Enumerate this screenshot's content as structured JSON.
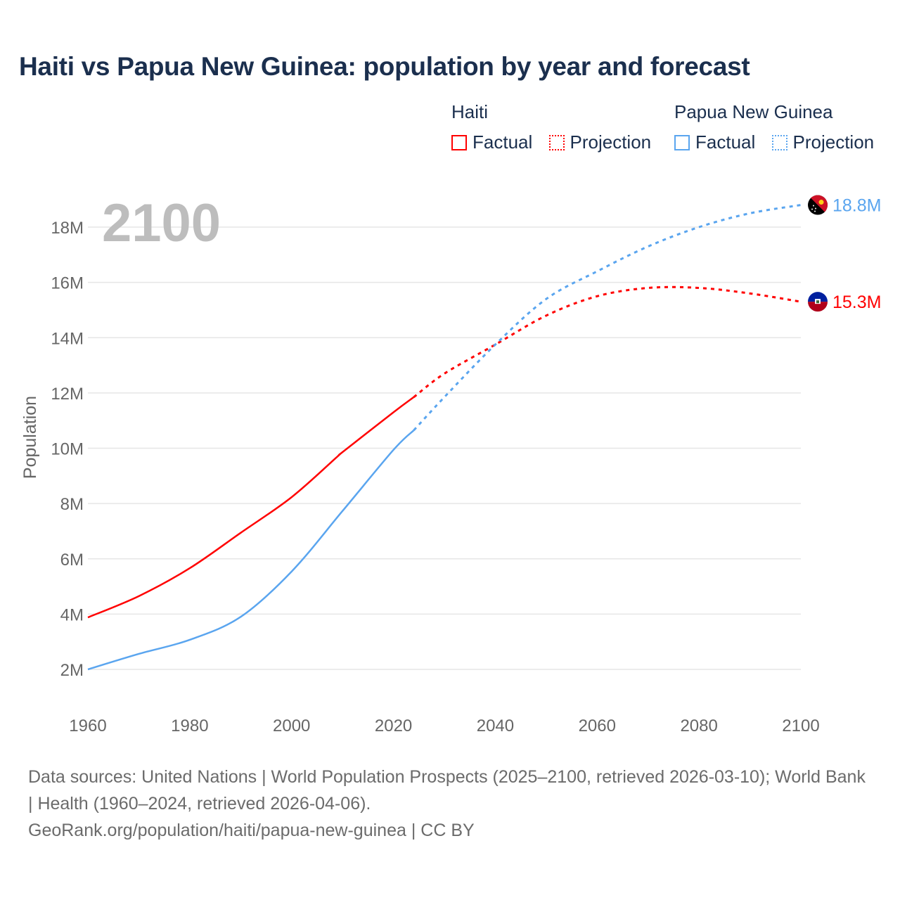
{
  "title": "Haiti vs Papua New Guinea: population by year and forecast",
  "legend": {
    "groups": [
      {
        "name": "Haiti",
        "items": [
          "Factual",
          "Projection"
        ],
        "color": "#ff0000"
      },
      {
        "name": "Papua New Guinea",
        "items": [
          "Factual",
          "Projection"
        ],
        "color": "#5aa5ef"
      }
    ]
  },
  "footer": {
    "sources": "Data sources: United Nations | World Population Prospects (2025–2100, retrieved 2026-03-10); World Bank | Health (1960–2024, retrieved 2026-04-06).",
    "credit": "GeoRank.org/population/haiti/papua-new-guinea | CC BY"
  },
  "chart_data": {
    "type": "line",
    "title": "Haiti vs Papua New Guinea: population by year and forecast",
    "year_label": "2100",
    "xlabel": "",
    "ylabel": "Population",
    "xlim": [
      1960,
      2100
    ],
    "ylim": [
      1,
      19.5
    ],
    "x_ticks": [
      1960,
      1980,
      2000,
      2020,
      2040,
      2060,
      2080,
      2100
    ],
    "y_ticks": [
      2,
      4,
      6,
      8,
      10,
      12,
      14,
      16,
      18
    ],
    "y_tick_labels": [
      "2M",
      "4M",
      "6M",
      "8M",
      "10M",
      "12M",
      "14M",
      "16M",
      "18M"
    ],
    "grid": true,
    "legend_position": "top-right",
    "projection_start": 2024,
    "series": [
      {
        "name": "Haiti",
        "color": "#ff0000",
        "end_label": "15.3M",
        "flag": "haiti",
        "x": [
          1960,
          1970,
          1980,
          1990,
          2000,
          2009,
          2010,
          2020,
          2024,
          2030,
          2040,
          2050,
          2060,
          2070,
          2080,
          2090,
          2100
        ],
        "values": [
          3.88,
          4.65,
          5.66,
          6.94,
          8.23,
          9.7,
          9.86,
          11.3,
          11.85,
          12.7,
          13.75,
          14.8,
          15.5,
          15.8,
          15.8,
          15.6,
          15.3
        ]
      },
      {
        "name": "Papua New Guinea",
        "color": "#5aa5ef",
        "end_label": "18.8M",
        "flag": "papua-new-guinea",
        "x": [
          1960,
          1970,
          1980,
          1990,
          2000,
          2010,
          2020,
          2024,
          2030,
          2040,
          2050,
          2060,
          2070,
          2080,
          2090,
          2100
        ],
        "values": [
          2.0,
          2.56,
          3.07,
          3.9,
          5.54,
          7.73,
          9.94,
          10.65,
          11.85,
          13.75,
          15.4,
          16.4,
          17.3,
          18.0,
          18.5,
          18.8
        ]
      }
    ]
  }
}
